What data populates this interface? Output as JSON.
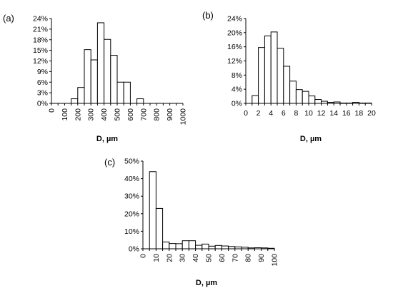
{
  "chart_data": [
    {
      "type": "bar",
      "panel_label": "(a)",
      "xlabel": "D, µm",
      "ylabel": "",
      "x_ticks": [
        "0",
        "100",
        "200",
        "300",
        "400",
        "500",
        "600",
        "700",
        "800",
        "900",
        "1000"
      ],
      "y_ticks": [
        "0%",
        "3%",
        "6%",
        "9%",
        "12%",
        "15%",
        "18%",
        "21%",
        "24%"
      ],
      "xlim": [
        0,
        1000
      ],
      "ylim": [
        0,
        24
      ],
      "bin_width": 50,
      "x": [
        0,
        50,
        100,
        150,
        200,
        250,
        300,
        350,
        400,
        450,
        500,
        550,
        600,
        650,
        700,
        750,
        800,
        850,
        900,
        950
      ],
      "values": [
        0,
        0,
        0,
        1.3,
        4.5,
        15.2,
        12.3,
        22.8,
        18.1,
        13.6,
        6.0,
        6.0,
        0,
        1.3,
        0,
        0,
        0,
        0,
        0,
        0
      ],
      "grid": false,
      "legend": "none"
    },
    {
      "type": "bar",
      "panel_label": "(b)",
      "xlabel": "D, µm",
      "ylabel": "",
      "x_ticks": [
        "0",
        "2",
        "4",
        "6",
        "8",
        "10",
        "12",
        "14",
        "16",
        "18",
        "20"
      ],
      "y_ticks": [
        "0%",
        "4%",
        "8%",
        "12%",
        "16%",
        "20%",
        "24%"
      ],
      "xlim": [
        0,
        20
      ],
      "ylim": [
        0,
        24
      ],
      "bin_width": 1,
      "x": [
        0,
        1,
        2,
        3,
        4,
        5,
        6,
        7,
        8,
        9,
        10,
        11,
        12,
        13,
        14,
        15,
        16,
        17,
        18,
        19
      ],
      "values": [
        0,
        2.2,
        15.8,
        19.1,
        20.2,
        15.6,
        10.5,
        6.3,
        3.9,
        3.4,
        2.1,
        1.1,
        0.6,
        0.3,
        0.4,
        0.1,
        0.1,
        0.3,
        0.1,
        0.1
      ],
      "grid": false,
      "legend": "none"
    },
    {
      "type": "bar",
      "panel_label": "(c)",
      "xlabel": "D, µm",
      "ylabel": "",
      "x_ticks": [
        "0",
        "10",
        "20",
        "30",
        "40",
        "50",
        "60",
        "70",
        "80",
        "90",
        "100"
      ],
      "y_ticks": [
        "0%",
        "10%",
        "20%",
        "30%",
        "40%",
        "50%"
      ],
      "xlim": [
        0,
        100
      ],
      "ylim": [
        0,
        50
      ],
      "bin_width": 5,
      "x": [
        0,
        5,
        10,
        15,
        20,
        25,
        30,
        35,
        40,
        45,
        50,
        55,
        60,
        65,
        70,
        75,
        80,
        85,
        90,
        95
      ],
      "values": [
        0,
        44,
        23,
        3.9,
        3.0,
        2.9,
        4.6,
        4.6,
        2.0,
        2.7,
        1.5,
        1.9,
        1.6,
        1.3,
        1.1,
        0.9,
        0.5,
        0.6,
        0.5,
        0.3
      ],
      "grid": false,
      "legend": "none"
    }
  ]
}
